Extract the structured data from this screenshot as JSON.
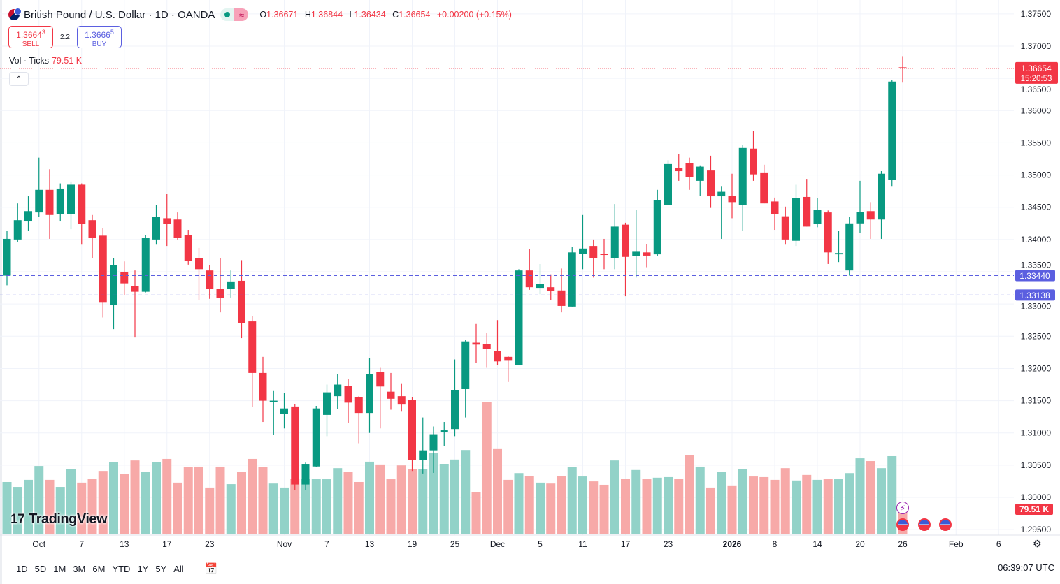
{
  "header": {
    "title": "British Pound / U.S. Dollar · 1D · OANDA",
    "badge_icon": "market-open-dot",
    "badge2_icon": "approx-icon",
    "badge2_text": "≈",
    "ohlc": {
      "o_label": "O",
      "o": "1.36671",
      "h_label": "H",
      "h": "1.36844",
      "l_label": "L",
      "l": "1.36434",
      "c_label": "C",
      "c": "1.36654",
      "change": "+0.00200 (+0.15%)"
    }
  },
  "trade": {
    "sell_price": "1.3664",
    "sell_sup": "3",
    "sell_label": "SELL",
    "spread": "2.2",
    "buy_price": "1.3666",
    "buy_sup": "5",
    "buy_label": "BUY"
  },
  "volume_legend": {
    "label": "Vol · Ticks",
    "value": "79.51 K"
  },
  "collapse_icon": "chevron-up",
  "logo": "TradingView",
  "footer": {
    "ranges": [
      "1D",
      "5D",
      "1M",
      "3M",
      "6M",
      "YTD",
      "1Y",
      "5Y",
      "All"
    ],
    "clock": "06:39:07 UTC"
  },
  "colors": {
    "up": "#089981",
    "down": "#f23645",
    "up_volume": "#92d2c8",
    "down_volume": "#f7a9a8",
    "line": "#5b5fe0",
    "last_price": "#f23645"
  },
  "chart_data": {
    "type": "candlestick",
    "symbol": "GBPUSD",
    "interval": "1D",
    "ylim": [
      1.2945,
      1.3755
    ],
    "y_ticks": [
      "1.37500",
      "1.37000",
      "1.36500",
      "1.36000",
      "1.35500",
      "1.35000",
      "1.34500",
      "1.34000",
      "1.33500",
      "1.33000",
      "1.32500",
      "1.32000",
      "1.31500",
      "1.31000",
      "1.30500",
      "1.30000",
      "1.29500"
    ],
    "x_ticks": [
      {
        "label": "Oct",
        "date": "2025-10-01"
      },
      {
        "label": "7",
        "date": "2025-10-07"
      },
      {
        "label": "13",
        "date": "2025-10-13"
      },
      {
        "label": "17",
        "date": "2025-10-17"
      },
      {
        "label": "23",
        "date": "2025-10-23"
      },
      {
        "label": "Nov",
        "date": "2025-11-03"
      },
      {
        "label": "7",
        "date": "2025-11-07"
      },
      {
        "label": "13",
        "date": "2025-11-13"
      },
      {
        "label": "19",
        "date": "2025-11-19"
      },
      {
        "label": "25",
        "date": "2025-11-25"
      },
      {
        "label": "Dec",
        "date": "2025-12-01"
      },
      {
        "label": "5",
        "date": "2025-12-05"
      },
      {
        "label": "11",
        "date": "2025-12-11"
      },
      {
        "label": "17",
        "date": "2025-12-17"
      },
      {
        "label": "23",
        "date": "2025-12-23"
      },
      {
        "label": "2026",
        "date": "2026-01-02",
        "bold": true
      },
      {
        "label": "8",
        "date": "2026-01-08"
      },
      {
        "label": "14",
        "date": "2026-01-14"
      },
      {
        "label": "20",
        "date": "2026-01-20"
      },
      {
        "label": "26",
        "date": "2026-01-26"
      },
      {
        "label": "Feb",
        "date": "2026-02-02"
      },
      {
        "label": "6",
        "date": "2026-02-06"
      }
    ],
    "columns": [
      "date",
      "open",
      "high",
      "low",
      "close",
      "volume_k"
    ],
    "candles": [
      [
        "2025-09-26",
        1.3344,
        1.3413,
        1.3329,
        1.3401,
        168
      ],
      [
        "2025-09-29",
        1.34,
        1.3456,
        1.3396,
        1.343,
        152
      ],
      [
        "2025-09-30",
        1.3428,
        1.3467,
        1.3413,
        1.3444,
        175
      ],
      [
        "2025-10-01",
        1.3442,
        1.3527,
        1.3435,
        1.3477,
        220
      ],
      [
        "2025-10-02",
        1.3477,
        1.3509,
        1.3401,
        1.3438,
        175
      ],
      [
        "2025-10-03",
        1.3439,
        1.3487,
        1.3428,
        1.3479,
        152
      ],
      [
        "2025-10-06",
        1.3439,
        1.349,
        1.3416,
        1.3485,
        211
      ],
      [
        "2025-10-07",
        1.3485,
        1.3487,
        1.3392,
        1.3424,
        166
      ],
      [
        "2025-10-08",
        1.343,
        1.3438,
        1.3371,
        1.3402,
        179
      ],
      [
        "2025-10-09",
        1.3406,
        1.3418,
        1.3279,
        1.3302,
        204
      ],
      [
        "2025-10-10",
        1.3298,
        1.3371,
        1.3261,
        1.336,
        232
      ],
      [
        "2025-10-13",
        1.3349,
        1.3366,
        1.3314,
        1.3332,
        193
      ],
      [
        "2025-10-14",
        1.3328,
        1.3352,
        1.3248,
        1.3319,
        238
      ],
      [
        "2025-10-15",
        1.3319,
        1.3407,
        1.3318,
        1.3402,
        200
      ],
      [
        "2025-10-16",
        1.34,
        1.3454,
        1.3392,
        1.3435,
        232
      ],
      [
        "2025-10-17",
        1.3433,
        1.3471,
        1.339,
        1.3424,
        243
      ],
      [
        "2025-10-20",
        1.3431,
        1.3442,
        1.34,
        1.3403,
        166
      ],
      [
        "2025-10-21",
        1.3407,
        1.3415,
        1.3361,
        1.3367,
        216
      ],
      [
        "2025-10-22",
        1.3371,
        1.3387,
        1.3306,
        1.3354,
        218
      ],
      [
        "2025-10-23",
        1.3352,
        1.336,
        1.3308,
        1.3324,
        150
      ],
      [
        "2025-10-24",
        1.3324,
        1.3371,
        1.3287,
        1.3309,
        218
      ],
      [
        "2025-10-27",
        1.3324,
        1.3352,
        1.331,
        1.3335,
        161
      ],
      [
        "2025-10-28",
        1.3336,
        1.3368,
        1.3247,
        1.327,
        202
      ],
      [
        "2025-10-29",
        1.3273,
        1.3281,
        1.314,
        1.3193,
        243
      ],
      [
        "2025-10-30",
        1.3193,
        1.3218,
        1.3117,
        1.315,
        216
      ],
      [
        "2025-10-31",
        1.3149,
        1.3165,
        1.3097,
        1.315,
        163
      ],
      [
        "2025-11-03",
        1.3129,
        1.3162,
        1.3107,
        1.3138,
        150
      ],
      [
        "2025-11-04",
        1.3141,
        1.3145,
        1.3011,
        1.302,
        179
      ],
      [
        "2025-11-05",
        1.302,
        1.3054,
        1.3011,
        1.3052,
        177
      ],
      [
        "2025-11-06",
        1.3048,
        1.3142,
        1.3047,
        1.3138,
        177
      ],
      [
        "2025-11-07",
        1.3128,
        1.3175,
        1.3095,
        1.3163,
        177
      ],
      [
        "2025-11-10",
        1.3157,
        1.3191,
        1.3137,
        1.3175,
        213
      ],
      [
        "2025-11-11",
        1.3173,
        1.3184,
        1.3116,
        1.3147,
        200
      ],
      [
        "2025-11-12",
        1.3156,
        1.3157,
        1.3084,
        1.3131,
        168
      ],
      [
        "2025-11-13",
        1.3131,
        1.3216,
        1.31,
        1.3191,
        234
      ],
      [
        "2025-11-14",
        1.3195,
        1.3201,
        1.3107,
        1.3172,
        225
      ],
      [
        "2025-11-17",
        1.3164,
        1.3193,
        1.3136,
        1.3153,
        177
      ],
      [
        "2025-11-18",
        1.3157,
        1.3177,
        1.3133,
        1.3144,
        222
      ],
      [
        "2025-11-19",
        1.3151,
        1.3155,
        1.3041,
        1.3058,
        209
      ],
      [
        "2025-11-20",
        1.3058,
        1.3124,
        1.3037,
        1.3073,
        209
      ],
      [
        "2025-11-21",
        1.3073,
        1.311,
        1.3038,
        1.3098,
        263
      ],
      [
        "2025-11-24",
        1.3101,
        1.3117,
        1.308,
        1.3104,
        227
      ],
      [
        "2025-11-25",
        1.3106,
        1.3214,
        1.3095,
        1.3166,
        241
      ],
      [
        "2025-11-26",
        1.3168,
        1.3244,
        1.3124,
        1.3242,
        272
      ],
      [
        "2025-11-27",
        1.324,
        1.3269,
        1.3209,
        1.3237,
        134
      ],
      [
        "2025-11-28",
        1.3238,
        1.3255,
        1.3201,
        1.323,
        429
      ],
      [
        "2025-12-01",
        1.3227,
        1.3275,
        1.3205,
        1.3211,
        275
      ],
      [
        "2025-12-02",
        1.3218,
        1.322,
        1.3179,
        1.3212,
        175
      ],
      [
        "2025-12-03",
        1.3205,
        1.3354,
        1.3205,
        1.3352,
        197
      ],
      [
        "2025-12-04",
        1.3352,
        1.3385,
        1.3322,
        1.3326,
        188
      ],
      [
        "2025-12-05",
        1.3325,
        1.3362,
        1.3315,
        1.3331,
        166
      ],
      [
        "2025-12-08",
        1.3326,
        1.3346,
        1.3306,
        1.332,
        163
      ],
      [
        "2025-12-09",
        1.3321,
        1.3355,
        1.3287,
        1.3297,
        188
      ],
      [
        "2025-12-10",
        1.3296,
        1.3388,
        1.3296,
        1.338,
        216
      ],
      [
        "2025-12-11",
        1.3378,
        1.3438,
        1.3354,
        1.3386,
        186
      ],
      [
        "2025-12-12",
        1.339,
        1.34,
        1.3341,
        1.3371,
        170
      ],
      [
        "2025-12-15",
        1.3378,
        1.3401,
        1.3354,
        1.3376,
        159
      ],
      [
        "2025-12-16",
        1.3371,
        1.3455,
        1.3354,
        1.342,
        238
      ],
      [
        "2025-12-17",
        1.3423,
        1.3426,
        1.3312,
        1.3373,
        179
      ],
      [
        "2025-12-18",
        1.3374,
        1.3446,
        1.3341,
        1.3381,
        207
      ],
      [
        "2025-12-19",
        1.338,
        1.3393,
        1.3357,
        1.3375,
        177
      ],
      [
        "2025-12-22",
        1.3377,
        1.3477,
        1.3374,
        1.3461,
        182
      ],
      [
        "2025-12-23",
        1.3454,
        1.3523,
        1.3454,
        1.3517,
        184
      ],
      [
        "2025-12-24",
        1.3511,
        1.3533,
        1.3491,
        1.3506,
        179
      ],
      [
        "2025-12-26",
        1.3519,
        1.3527,
        1.3477,
        1.3497,
        256
      ],
      [
        "2025-12-29",
        1.3491,
        1.3515,
        1.3468,
        1.3513,
        218
      ],
      [
        "2025-12-30",
        1.3507,
        1.353,
        1.3449,
        1.3467,
        150
      ],
      [
        "2025-12-31",
        1.3467,
        1.3483,
        1.3401,
        1.3474,
        202
      ],
      [
        "2026-01-02",
        1.3468,
        1.3502,
        1.3433,
        1.3458,
        157
      ],
      [
        "2026-01-05",
        1.3453,
        1.3547,
        1.3413,
        1.3542,
        209
      ],
      [
        "2026-01-06",
        1.3541,
        1.3568,
        1.3491,
        1.3501,
        186
      ],
      [
        "2026-01-07",
        1.3504,
        1.3516,
        1.3456,
        1.3456,
        184
      ],
      [
        "2026-01-08",
        1.3459,
        1.3465,
        1.3415,
        1.3439,
        175
      ],
      [
        "2026-01-09",
        1.3436,
        1.3451,
        1.3392,
        1.34,
        213
      ],
      [
        "2026-01-12",
        1.3398,
        1.3485,
        1.339,
        1.3464,
        173
      ],
      [
        "2026-01-13",
        1.3466,
        1.3494,
        1.342,
        1.342,
        191
      ],
      [
        "2026-01-14",
        1.3424,
        1.3464,
        1.3419,
        1.3446,
        175
      ],
      [
        "2026-01-15",
        1.3442,
        1.3445,
        1.3362,
        1.338,
        179
      ],
      [
        "2026-01-16",
        1.3377,
        1.3413,
        1.3365,
        1.3379,
        177
      ],
      [
        "2026-01-19",
        1.3352,
        1.3435,
        1.3344,
        1.3425,
        197
      ],
      [
        "2026-01-20",
        1.3425,
        1.3491,
        1.341,
        1.3443,
        245
      ],
      [
        "2026-01-21",
        1.3444,
        1.3458,
        1.3401,
        1.3431,
        236
      ],
      [
        "2026-01-22",
        1.3431,
        1.3506,
        1.3401,
        1.3502,
        213
      ],
      [
        "2026-01-23",
        1.3493,
        1.3647,
        1.3483,
        1.3645,
        252
      ],
      [
        "2026-01-26",
        1.36671,
        1.36844,
        1.36434,
        1.36654,
        79.51
      ]
    ],
    "horizontal_lines": [
      {
        "price": 1.3344,
        "label": "1.33440"
      },
      {
        "price": 1.33138,
        "label": "1.33138"
      }
    ],
    "last_price": {
      "price": 1.36654,
      "label": "1.36654",
      "countdown": "15:20:53"
    },
    "last_volume_label": "79.51 K",
    "events": [
      {
        "date": "2026-01-26",
        "icon": "lightning-icon"
      },
      {
        "date": "2026-01-26",
        "icon": "us-flag-icon"
      },
      {
        "date": "2026-01-28",
        "icon": "us-flag-icon"
      },
      {
        "date": "2026-01-30",
        "icon": "us-flag-icon"
      }
    ],
    "grid": true
  }
}
